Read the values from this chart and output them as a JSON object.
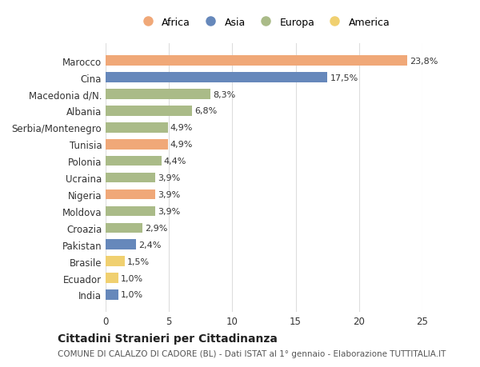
{
  "countries": [
    "Marocco",
    "Cina",
    "Macedonia d/N.",
    "Albania",
    "Serbia/Montenegro",
    "Tunisia",
    "Polonia",
    "Ucraina",
    "Nigeria",
    "Moldova",
    "Croazia",
    "Pakistan",
    "Brasile",
    "Ecuador",
    "India"
  ],
  "values": [
    23.8,
    17.5,
    8.3,
    6.8,
    4.9,
    4.9,
    4.4,
    3.9,
    3.9,
    3.9,
    2.9,
    2.4,
    1.5,
    1.0,
    1.0
  ],
  "labels": [
    "23,8%",
    "17,5%",
    "8,3%",
    "6,8%",
    "4,9%",
    "4,9%",
    "4,4%",
    "3,9%",
    "3,9%",
    "3,9%",
    "2,9%",
    "2,4%",
    "1,5%",
    "1,0%",
    "1,0%"
  ],
  "continents": [
    "Africa",
    "Asia",
    "Europa",
    "Europa",
    "Europa",
    "Africa",
    "Europa",
    "Europa",
    "Africa",
    "Europa",
    "Europa",
    "Asia",
    "America",
    "America",
    "Asia"
  ],
  "colors": {
    "Africa": "#F0A878",
    "Asia": "#6688BB",
    "Europa": "#AABB88",
    "America": "#F0D070"
  },
  "legend_order": [
    "Africa",
    "Asia",
    "Europa",
    "America"
  ],
  "title": "Cittadini Stranieri per Cittadinanza",
  "subtitle": "COMUNE DI CALALZO DI CADORE (BL) - Dati ISTAT al 1° gennaio - Elaborazione TUTTITALIA.IT",
  "xlim": [
    0,
    25
  ],
  "xticks": [
    0,
    5,
    10,
    15,
    20,
    25
  ],
  "background_color": "#ffffff",
  "grid_color": "#dddddd"
}
